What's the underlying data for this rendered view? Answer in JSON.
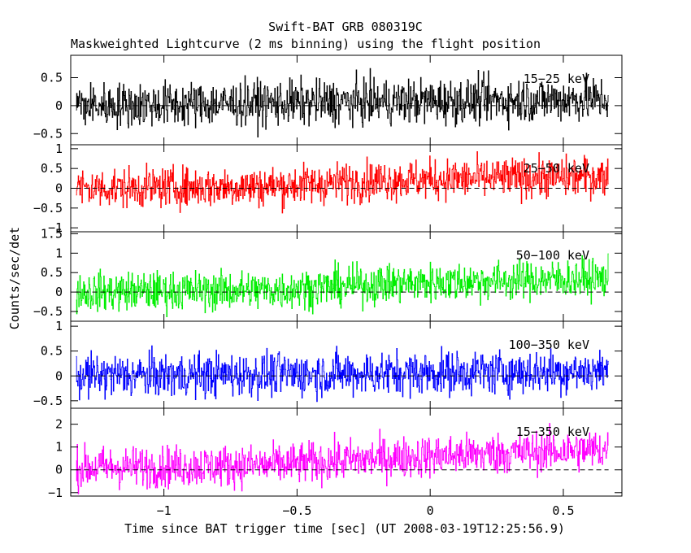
{
  "chart_data": {
    "type": "line",
    "title": "Swift-BAT GRB 080319C",
    "subtitle": "Maskweighted Lightcurve (2 ms binning) using the flight position",
    "xlabel": "Time since BAT trigger time [sec] (UT 2008-03-19T12:25:56.9)",
    "ylabel": "Counts/sec/det",
    "xlim": [
      -1.35,
      0.72
    ],
    "data_x_range": [
      -1.33,
      0.67
    ],
    "bin_width_sec": 0.002,
    "x_ticks": [
      -1,
      -0.5,
      0,
      0.5
    ],
    "x_tick_labels": [
      "−1",
      "−0.5",
      "0",
      "0.5"
    ],
    "grid": false,
    "panels": [
      {
        "band": "15−25 keV",
        "color": "#000000",
        "ylim": [
          -0.7,
          0.9
        ],
        "y_ticks": [
          -0.5,
          0,
          0.5
        ],
        "y_tick_labels": [
          "−0.5",
          "0",
          "0.5"
        ],
        "trend": [
          [
            -1.33,
            0.0
          ],
          [
            0.67,
            0.12
          ]
        ],
        "noise_sd": 0.2
      },
      {
        "band": "25−50 keV",
        "color": "#ff0000",
        "ylim": [
          -1.1,
          1.1
        ],
        "y_ticks": [
          -1,
          -0.5,
          0,
          0.5,
          1
        ],
        "y_tick_labels": [
          "−1",
          "−0.5",
          "0",
          "0.5",
          "1"
        ],
        "trend": [
          [
            -1.33,
            0.0
          ],
          [
            -0.6,
            0.05
          ],
          [
            -0.2,
            0.2
          ],
          [
            0.67,
            0.3
          ]
        ],
        "noise_sd": 0.25
      },
      {
        "band": "50−100 keV",
        "color": "#00ee00",
        "ylim": [
          -0.75,
          1.55
        ],
        "y_ticks": [
          -0.5,
          0,
          0.5,
          1,
          1.5
        ],
        "y_tick_labels": [
          "−0.5",
          "0",
          "0.5",
          "1",
          "1.5"
        ],
        "trend": [
          [
            -1.33,
            0.0
          ],
          [
            -0.6,
            0.05
          ],
          [
            -0.2,
            0.2
          ],
          [
            0.3,
            0.3
          ],
          [
            0.67,
            0.35
          ]
        ],
        "noise_sd": 0.25
      },
      {
        "band": "100−350 keV",
        "color": "#0000ff",
        "ylim": [
          -0.65,
          1.1
        ],
        "y_ticks": [
          -0.5,
          0,
          0.5,
          1
        ],
        "y_tick_labels": [
          "−0.5",
          "0",
          "0.5",
          "1"
        ],
        "trend": [
          [
            -1.33,
            0.0
          ],
          [
            -0.2,
            0.05
          ],
          [
            0.67,
            0.1
          ]
        ],
        "noise_sd": 0.22
      },
      {
        "band": "15−350 keV",
        "color": "#ff00ff",
        "ylim": [
          -1.15,
          2.7
        ],
        "y_ticks": [
          -1,
          0,
          1,
          2
        ],
        "y_tick_labels": [
          "−1",
          "0",
          "1",
          "2"
        ],
        "trend": [
          [
            -1.33,
            0.1
          ],
          [
            -0.6,
            0.2
          ],
          [
            -0.2,
            0.5
          ],
          [
            0.3,
            0.75
          ],
          [
            0.67,
            0.9
          ]
        ],
        "noise_sd": 0.45
      }
    ]
  }
}
